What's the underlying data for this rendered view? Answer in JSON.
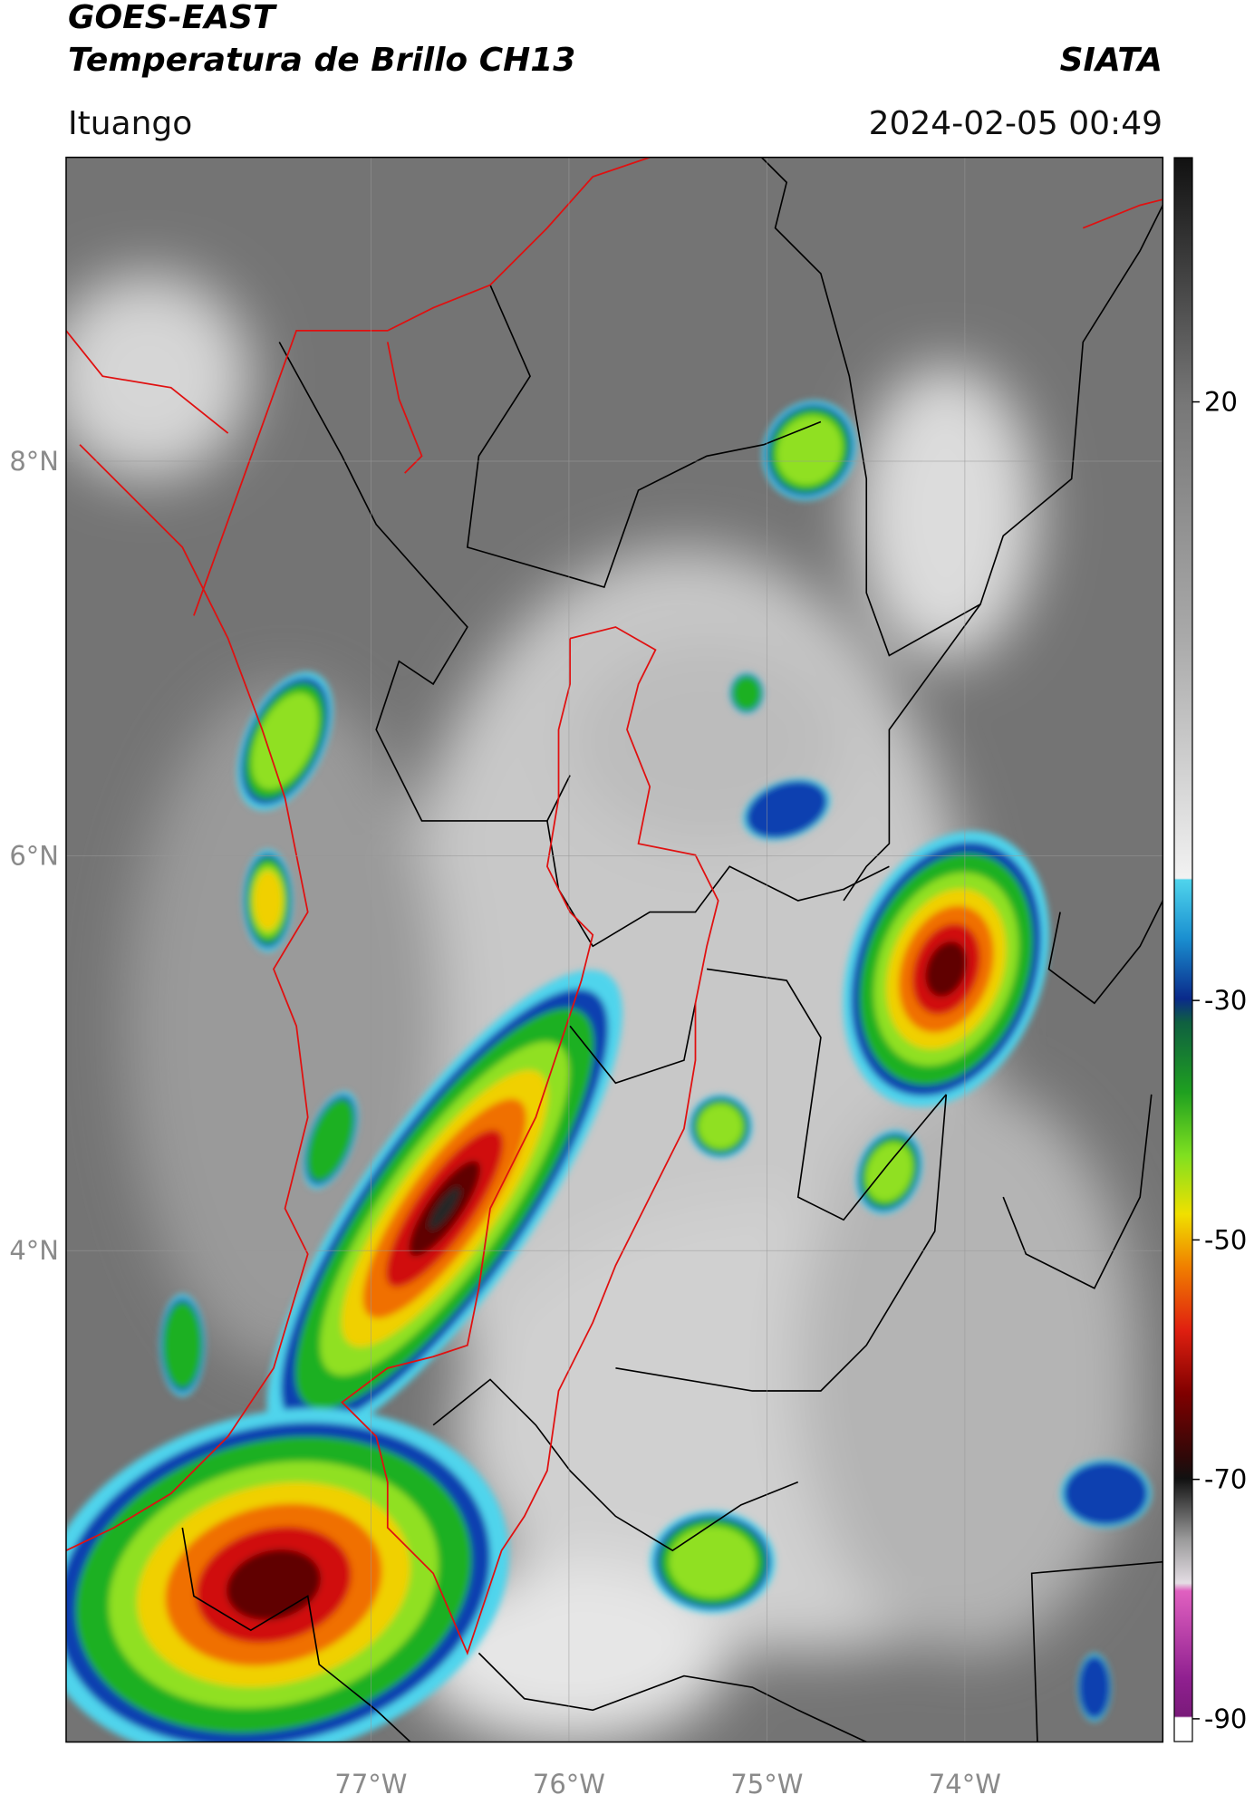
{
  "header": {
    "satellite": "GOES-EAST",
    "product": "Temperatura de Brillo CH13",
    "agency": "SIATA",
    "location": "Ituango",
    "datetime": "2024-02-05 00:49"
  },
  "map": {
    "xlim": [
      -78.54,
      -73.0
    ],
    "ylim": [
      1.51,
      9.54
    ],
    "xticks": [
      {
        "value": -77,
        "label": "77°W"
      },
      {
        "value": -76,
        "label": "76°W"
      },
      {
        "value": -75,
        "label": "75°W"
      },
      {
        "value": -74,
        "label": "74°W"
      }
    ],
    "yticks": [
      {
        "value": 8,
        "label": "8°N"
      },
      {
        "value": 6,
        "label": "6°N"
      },
      {
        "value": 4,
        "label": "4°N"
      }
    ],
    "grid": true
  },
  "colorbar": {
    "clim": [
      -91.9,
      40.4
    ],
    "ticks": [
      20,
      -30,
      -50,
      -70,
      -90
    ]
  }
}
